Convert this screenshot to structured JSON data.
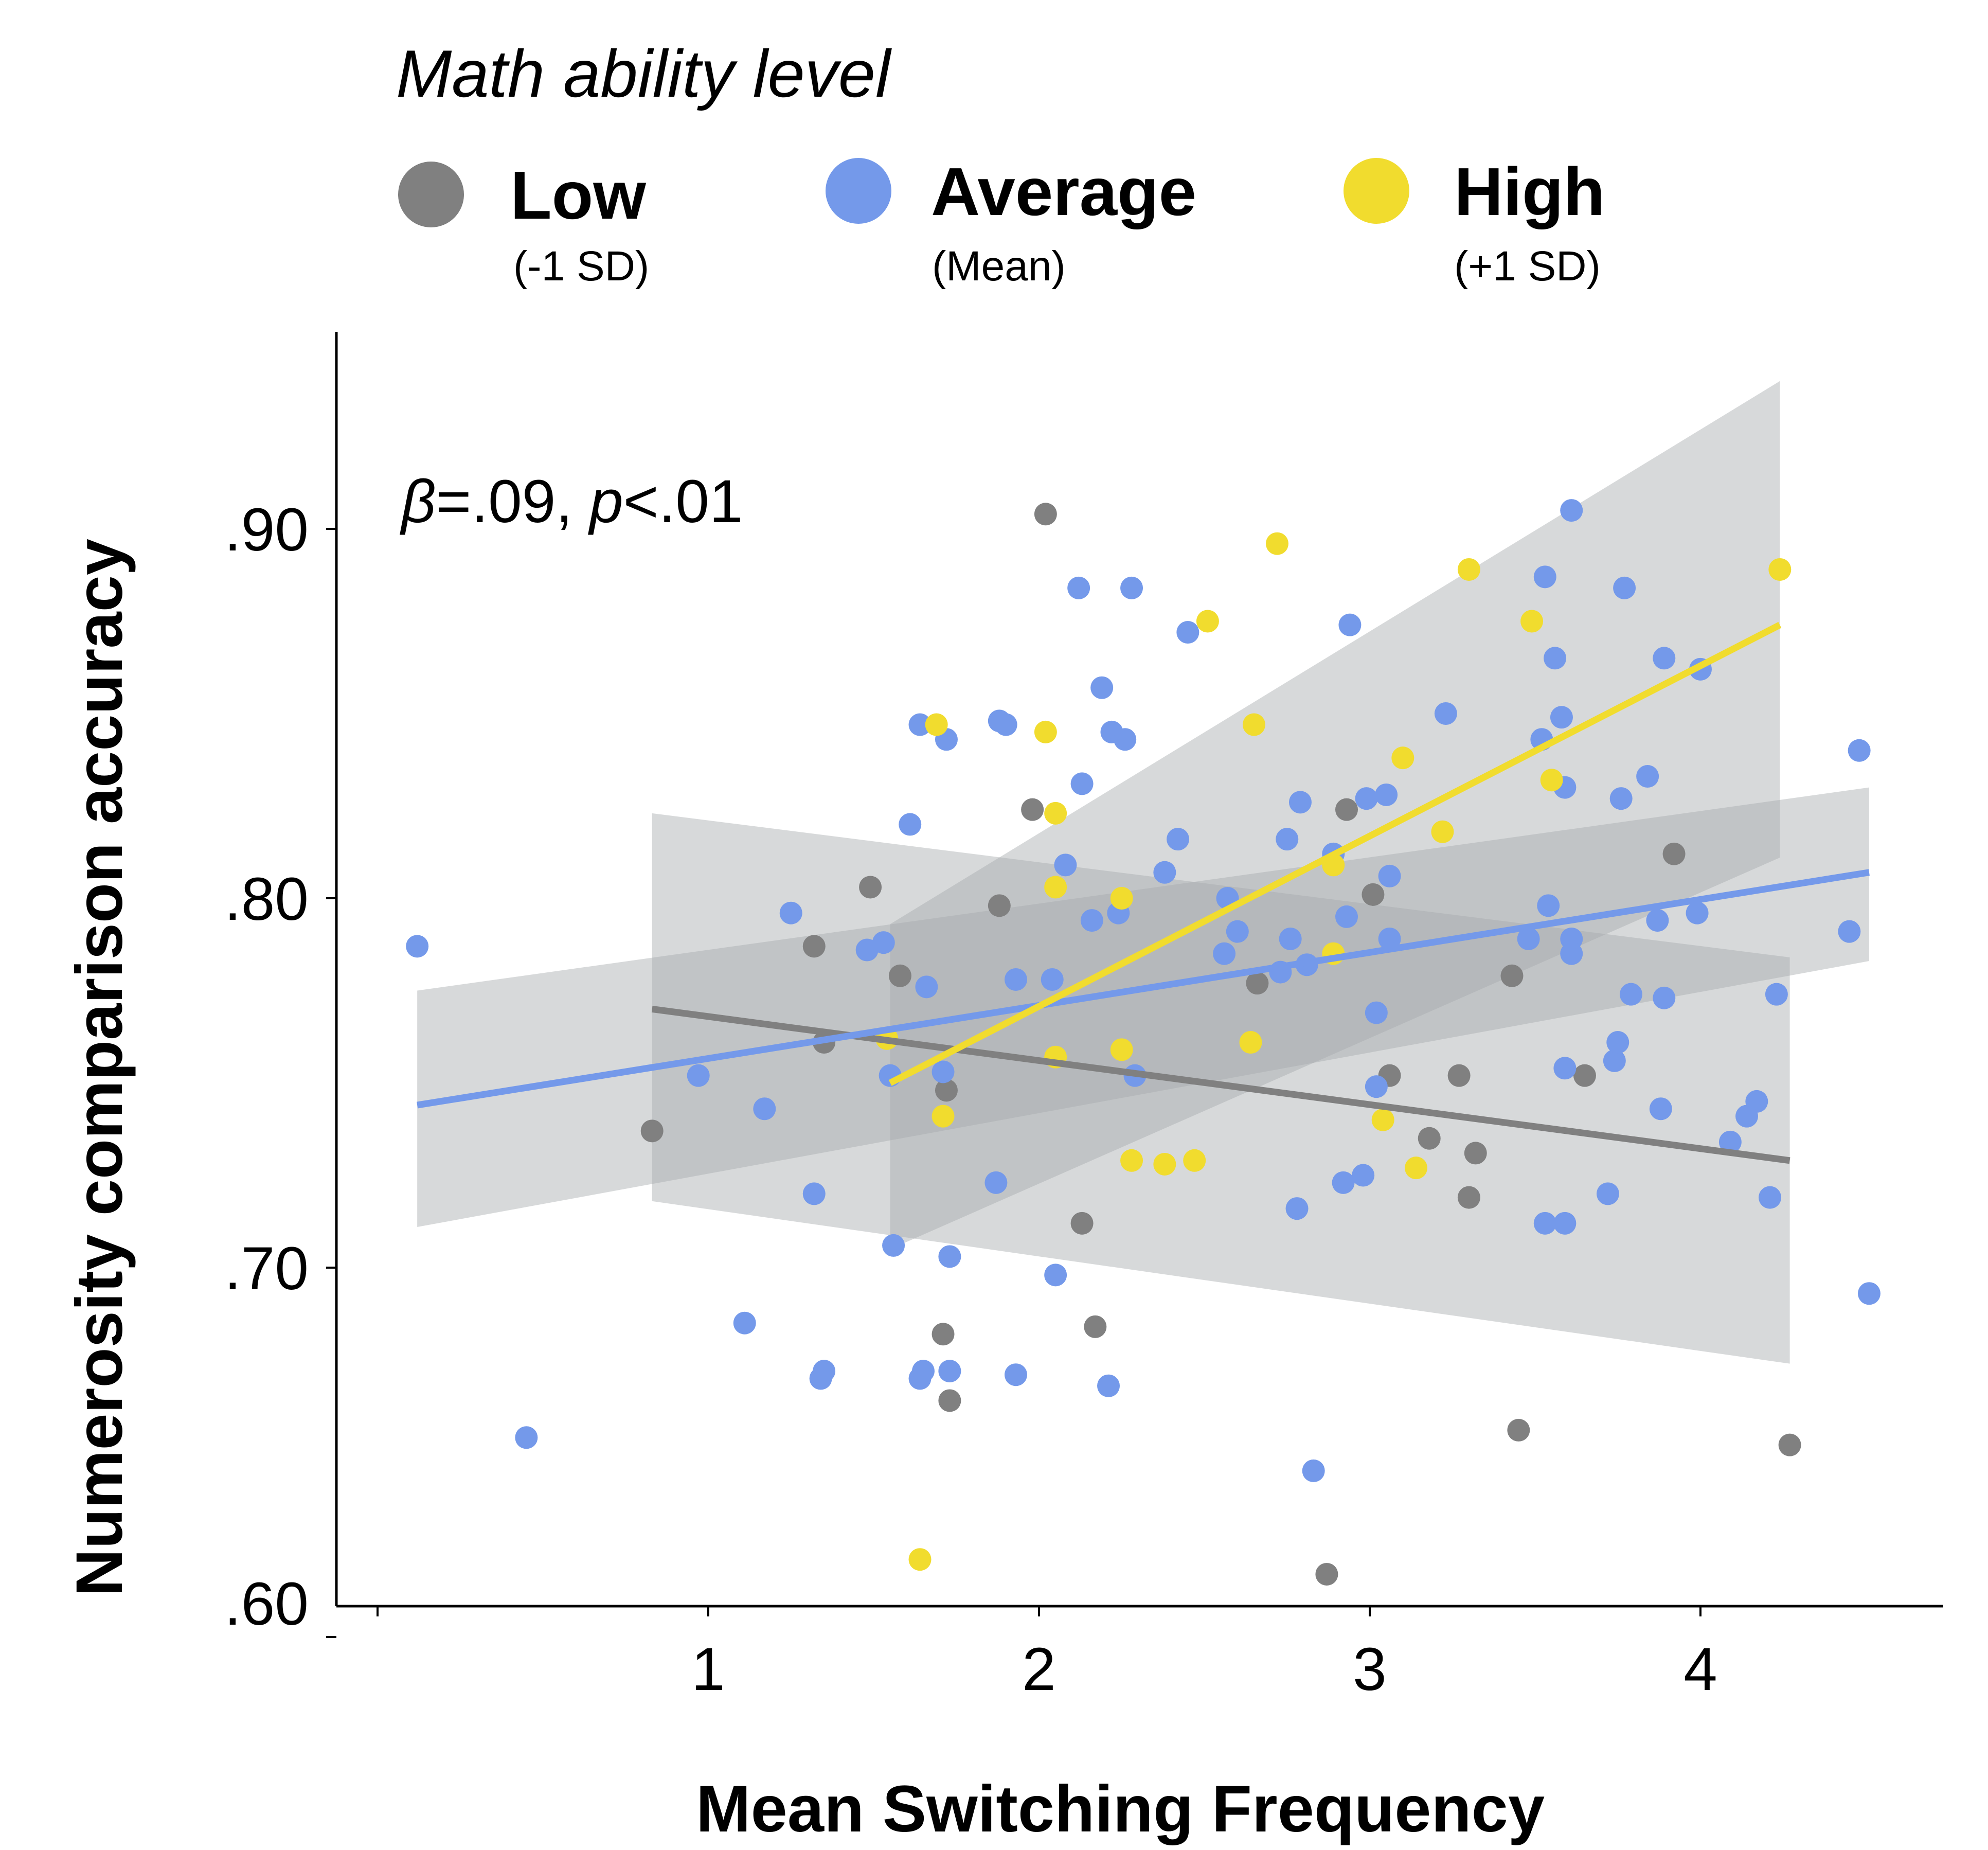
{
  "chart_data": {
    "type": "scatter",
    "legend": {
      "title": "Math ability level",
      "placement": "top",
      "entries": [
        {
          "label": "Low",
          "sublabel": "(-1 SD)",
          "color": "#808080"
        },
        {
          "label": "Average",
          "sublabel": "(Mean)",
          "color": "#7499EA"
        },
        {
          "label": "High",
          "sublabel": "(+1 SD)",
          "color": "#F1DC2E"
        }
      ]
    },
    "xlabel": "Mean Switching Frequency",
    "ylabel": "Numerosity comparison accuracy",
    "xlim": [
      0,
      4.85
    ],
    "ylim": [
      0.6,
      0.955
    ],
    "x_ticks": [
      1,
      2,
      3,
      4
    ],
    "x_tick_labels": [
      "1",
      "2",
      "3",
      "4"
    ],
    "y_ticks": [
      0.6,
      0.7,
      0.8,
      0.9
    ],
    "y_tick_labels": [
      ".60",
      ".70",
      ".80",
      ".90"
    ],
    "annotation": {
      "beta": "β",
      "p": "p",
      "text1": "=.09, ",
      "text2": "<.01"
    },
    "grid": false,
    "series": [
      {
        "name": "Low",
        "color": "#808080",
        "points": [
          [
            0.83,
            0.737
          ],
          [
            1.32,
            0.787
          ],
          [
            1.35,
            0.761
          ],
          [
            1.49,
            0.803
          ],
          [
            1.58,
            0.779
          ],
          [
            1.71,
            0.682
          ],
          [
            1.72,
            0.748
          ],
          [
            1.73,
            0.664
          ],
          [
            1.88,
            0.798
          ],
          [
            1.98,
            0.824
          ],
          [
            2.02,
            0.904
          ],
          [
            2.13,
            0.712
          ],
          [
            2.17,
            0.684
          ],
          [
            2.66,
            0.777
          ],
          [
            2.93,
            0.824
          ],
          [
            3.01,
            0.801
          ],
          [
            3.06,
            0.752
          ],
          [
            3.18,
            0.735
          ],
          [
            3.27,
            0.752
          ],
          [
            3.3,
            0.719
          ],
          [
            3.32,
            0.731
          ],
          [
            3.43,
            0.779
          ],
          [
            3.45,
            0.656
          ],
          [
            3.65,
            0.752
          ],
          [
            3.92,
            0.812
          ],
          [
            4.27,
            0.652
          ],
          [
            2.87,
            0.617
          ]
        ],
        "fit": {
          "x": [
            0.83,
            4.27
          ],
          "y": [
            0.77,
            0.729
          ]
        },
        "ci": {
          "x": [
            0.83,
            4.27
          ],
          "upper": [
            0.823,
            0.784
          ],
          "lower": [
            0.718,
            0.674
          ]
        }
      },
      {
        "name": "Average",
        "color": "#7499EA",
        "points": [
          [
            0.12,
            0.787
          ],
          [
            0.45,
            0.654
          ],
          [
            0.97,
            0.752
          ],
          [
            1.11,
            0.685
          ],
          [
            1.17,
            0.743
          ],
          [
            1.25,
            0.796
          ],
          [
            1.32,
            0.72
          ],
          [
            1.34,
            0.67
          ],
          [
            1.35,
            0.672
          ],
          [
            1.48,
            0.786
          ],
          [
            1.53,
            0.788
          ],
          [
            1.55,
            0.752
          ],
          [
            1.56,
            0.706
          ],
          [
            1.61,
            0.82
          ],
          [
            1.64,
            0.847
          ],
          [
            1.64,
            0.67
          ],
          [
            1.65,
            0.672
          ],
          [
            1.66,
            0.776
          ],
          [
            1.71,
            0.753
          ],
          [
            1.72,
            0.843
          ],
          [
            1.73,
            0.703
          ],
          [
            1.73,
            0.672
          ],
          [
            1.87,
            0.723
          ],
          [
            1.88,
            0.848
          ],
          [
            1.9,
            0.847
          ],
          [
            1.93,
            0.671
          ],
          [
            1.93,
            0.778
          ],
          [
            2.04,
            0.778
          ],
          [
            2.05,
            0.698
          ],
          [
            2.08,
            0.809
          ],
          [
            2.12,
            0.884
          ],
          [
            2.13,
            0.831
          ],
          [
            2.16,
            0.794
          ],
          [
            2.19,
            0.857
          ],
          [
            2.21,
            0.668
          ],
          [
            2.22,
            0.845
          ],
          [
            2.24,
            0.796
          ],
          [
            2.26,
            0.843
          ],
          [
            2.28,
            0.884
          ],
          [
            2.29,
            0.752
          ],
          [
            2.38,
            0.807
          ],
          [
            2.42,
            0.816
          ],
          [
            2.45,
            0.872
          ],
          [
            2.56,
            0.785
          ],
          [
            2.57,
            0.8
          ],
          [
            2.6,
            0.791
          ],
          [
            2.73,
            0.78
          ],
          [
            2.75,
            0.816
          ],
          [
            2.76,
            0.789
          ],
          [
            2.78,
            0.716
          ],
          [
            2.79,
            0.826
          ],
          [
            2.81,
            0.782
          ],
          [
            2.83,
            0.645
          ],
          [
            2.89,
            0.812
          ],
          [
            2.92,
            0.723
          ],
          [
            2.93,
            0.795
          ],
          [
            2.94,
            0.874
          ],
          [
            2.98,
            0.725
          ],
          [
            2.99,
            0.827
          ],
          [
            3.02,
            0.769
          ],
          [
            3.02,
            0.749
          ],
          [
            3.05,
            0.828
          ],
          [
            3.06,
            0.806
          ],
          [
            3.06,
            0.789
          ],
          [
            3.23,
            0.85
          ],
          [
            3.48,
            0.789
          ],
          [
            3.52,
            0.843
          ],
          [
            3.53,
            0.887
          ],
          [
            3.53,
            0.712
          ],
          [
            3.54,
            0.798
          ],
          [
            3.56,
            0.865
          ],
          [
            3.58,
            0.849
          ],
          [
            3.59,
            0.83
          ],
          [
            3.59,
            0.712
          ],
          [
            3.59,
            0.754
          ],
          [
            3.61,
            0.905
          ],
          [
            3.61,
            0.789
          ],
          [
            3.61,
            0.785
          ],
          [
            3.72,
            0.72
          ],
          [
            3.74,
            0.756
          ],
          [
            3.75,
            0.761
          ],
          [
            3.76,
            0.827
          ],
          [
            3.77,
            0.884
          ],
          [
            3.79,
            0.774
          ],
          [
            3.84,
            0.833
          ],
          [
            3.87,
            0.794
          ],
          [
            3.88,
            0.743
          ],
          [
            3.89,
            0.865
          ],
          [
            3.89,
            0.773
          ],
          [
            3.99,
            0.796
          ],
          [
            4.0,
            0.862
          ],
          [
            4.09,
            0.734
          ],
          [
            4.14,
            0.741
          ],
          [
            4.17,
            0.745
          ],
          [
            4.21,
            0.719
          ],
          [
            4.23,
            0.774
          ],
          [
            4.45,
            0.791
          ],
          [
            4.48,
            0.84
          ],
          [
            4.51,
            0.693
          ]
        ],
        "fit": {
          "x": [
            0.12,
            4.51
          ],
          "y": [
            0.744,
            0.807
          ]
        },
        "ci": {
          "x": [
            0.12,
            4.51
          ],
          "upper": [
            0.775,
            0.83
          ],
          "lower": [
            0.711,
            0.783
          ]
        }
      },
      {
        "name": "High",
        "color": "#F1DC2E",
        "points": [
          [
            1.54,
            0.762
          ],
          [
            1.64,
            0.621
          ],
          [
            1.69,
            0.847
          ],
          [
            1.71,
            0.741
          ],
          [
            2.02,
            0.845
          ],
          [
            2.05,
            0.823
          ],
          [
            2.05,
            0.803
          ],
          [
            2.05,
            0.757
          ],
          [
            2.25,
            0.8
          ],
          [
            2.25,
            0.759
          ],
          [
            2.28,
            0.729
          ],
          [
            2.38,
            0.728
          ],
          [
            2.47,
            0.729
          ],
          [
            2.51,
            0.875
          ],
          [
            2.64,
            0.761
          ],
          [
            2.65,
            0.847
          ],
          [
            2.72,
            0.896
          ],
          [
            2.89,
            0.809
          ],
          [
            2.89,
            0.785
          ],
          [
            3.04,
            0.74
          ],
          [
            3.1,
            0.838
          ],
          [
            3.14,
            0.727
          ],
          [
            3.22,
            0.818
          ],
          [
            3.3,
            0.889
          ],
          [
            3.49,
            0.875
          ],
          [
            3.55,
            0.832
          ],
          [
            4.24,
            0.889
          ]
        ],
        "fit": {
          "x": [
            1.55,
            4.24
          ],
          "y": [
            0.75,
            0.874
          ]
        },
        "ci": {
          "x": [
            1.55,
            4.24
          ],
          "upper": [
            0.793,
            0.94
          ],
          "lower": [
            0.705,
            0.811
          ]
        }
      }
    ]
  }
}
